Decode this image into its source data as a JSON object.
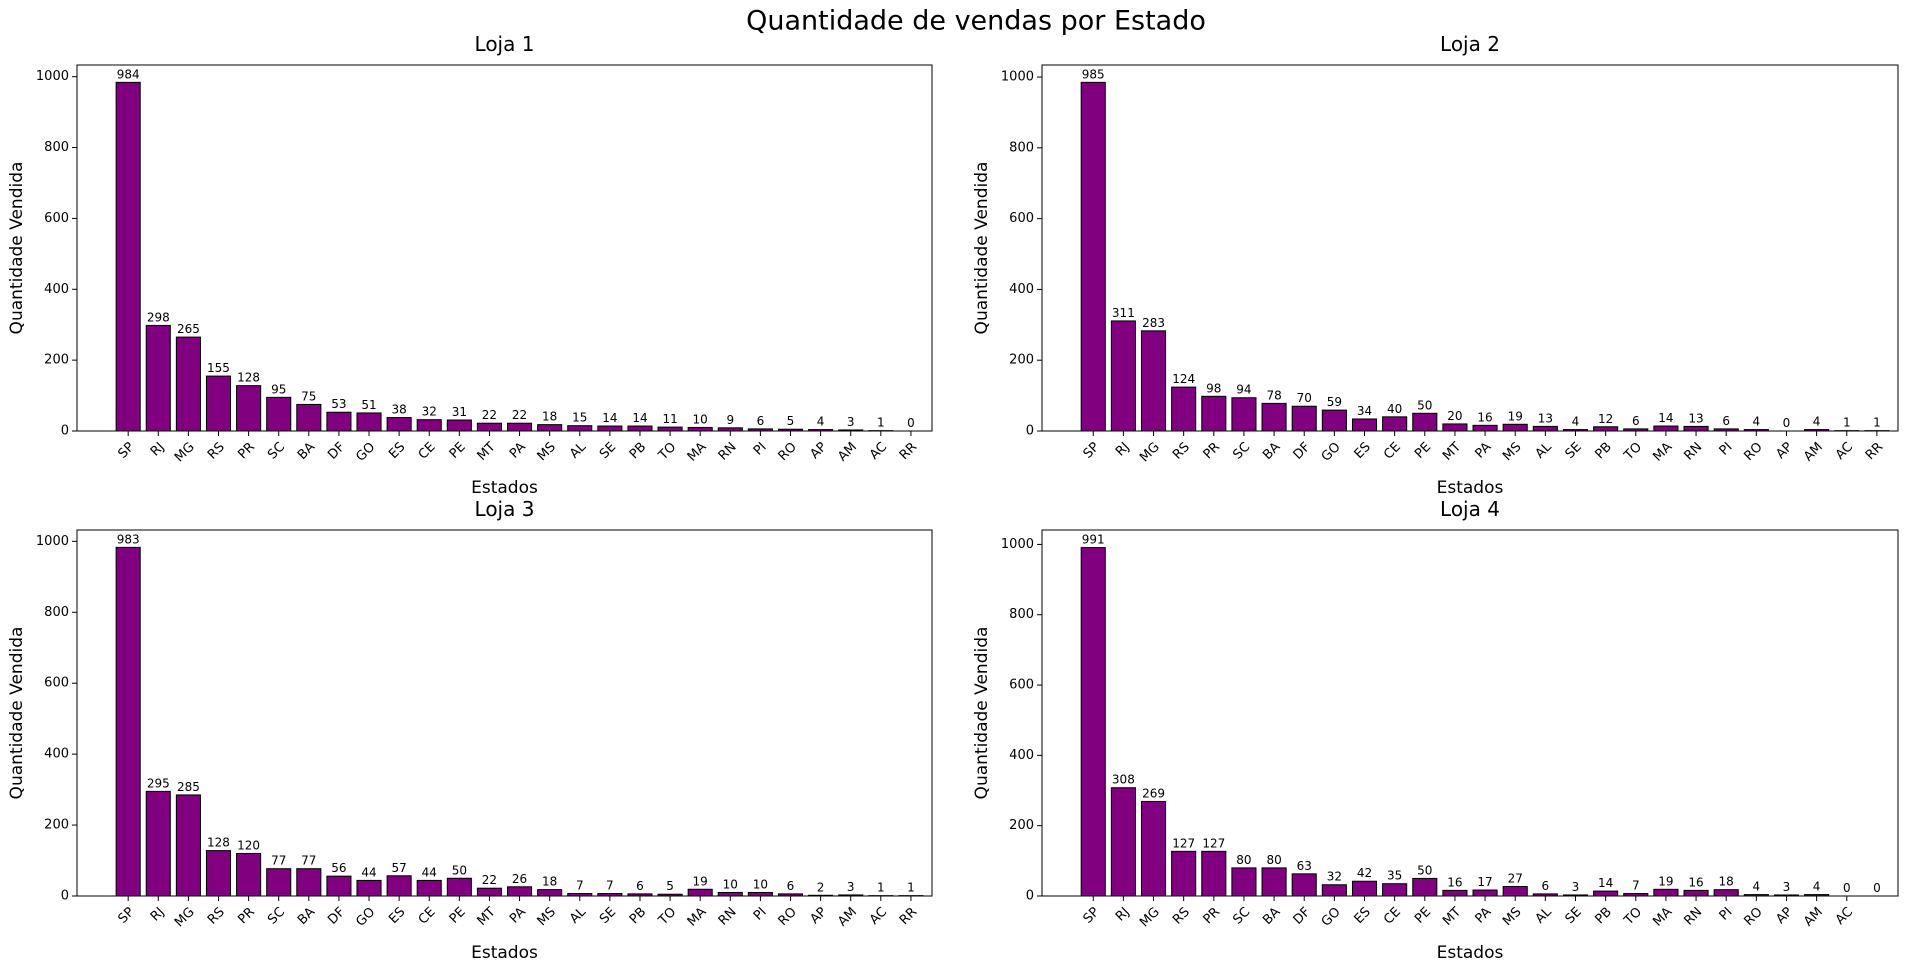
{
  "title": "Quantidade de vendas por Estado",
  "chart_data": [
    {
      "type": "bar",
      "title": "Loja 1",
      "x_label": "Estados",
      "y_label": "Quantidade Vendida",
      "color": "#800080",
      "categories": [
        "SP",
        "RJ",
        "MG",
        "RS",
        "PR",
        "SC",
        "BA",
        "DF",
        "GO",
        "ES",
        "CE",
        "PE",
        "MT",
        "PA",
        "MS",
        "AL",
        "SE",
        "PB",
        "TO",
        "MA",
        "RN",
        "PI",
        "RO",
        "AP",
        "AM",
        "AC",
        "RR"
      ],
      "values": [
        984,
        298,
        265,
        155,
        128,
        95,
        75,
        53,
        51,
        38,
        32,
        31,
        22,
        22,
        18,
        15,
        14,
        14,
        11,
        10,
        9,
        6,
        5,
        4,
        3,
        1,
        0
      ],
      "ylim": [
        0,
        1033
      ],
      "yticks": [
        0,
        200,
        400,
        600,
        800,
        1000
      ]
    },
    {
      "type": "bar",
      "title": "Loja 2",
      "x_label": "Estados",
      "y_label": "Quantidade Vendida",
      "color": "#800080",
      "categories": [
        "SP",
        "RJ",
        "MG",
        "RS",
        "PR",
        "SC",
        "BA",
        "DF",
        "GO",
        "ES",
        "CE",
        "PE",
        "MT",
        "PA",
        "MS",
        "AL",
        "SE",
        "PB",
        "TO",
        "MA",
        "RN",
        "PI",
        "RO",
        "AP",
        "AM",
        "AC",
        "RR"
      ],
      "values": [
        985,
        311,
        283,
        124,
        98,
        94,
        78,
        70,
        59,
        34,
        40,
        50,
        20,
        16,
        19,
        13,
        4,
        12,
        6,
        14,
        13,
        6,
        4,
        0,
        4,
        1,
        1
      ],
      "ylim": [
        0,
        1034
      ],
      "yticks": [
        0,
        200,
        400,
        600,
        800,
        1000
      ]
    },
    {
      "type": "bar",
      "title": "Loja 3",
      "x_label": "Estados",
      "y_label": "Quantidade Vendida",
      "color": "#800080",
      "categories": [
        "SP",
        "RJ",
        "MG",
        "RS",
        "PR",
        "SC",
        "BA",
        "DF",
        "GO",
        "ES",
        "CE",
        "PE",
        "MT",
        "PA",
        "MS",
        "AL",
        "SE",
        "PB",
        "TO",
        "MA",
        "RN",
        "PI",
        "RO",
        "AP",
        "AM",
        "AC",
        "RR"
      ],
      "values": [
        983,
        295,
        285,
        128,
        120,
        77,
        77,
        56,
        44,
        57,
        44,
        50,
        22,
        26,
        18,
        7,
        7,
        6,
        5,
        19,
        10,
        10,
        6,
        2,
        3,
        1,
        1
      ],
      "ylim": [
        0,
        1032
      ],
      "yticks": [
        0,
        200,
        400,
        600,
        800,
        1000
      ]
    },
    {
      "type": "bar",
      "title": "Loja 4",
      "x_label": "Estados",
      "y_label": "Quantidade Vendida",
      "color": "#800080",
      "categories": [
        "SP",
        "RJ",
        "MG",
        "RS",
        "PR",
        "SC",
        "BA",
        "DF",
        "GO",
        "ES",
        "CE",
        "PE",
        "MT",
        "PA",
        "MS",
        "AL",
        "SE",
        "PB",
        "TO",
        "MA",
        "RN",
        "PI",
        "RO",
        "AP",
        "AM",
        "AC",
        null
      ],
      "values": [
        991,
        308,
        269,
        127,
        127,
        80,
        80,
        63,
        32,
        42,
        35,
        50,
        16,
        17,
        27,
        6,
        3,
        14,
        7,
        19,
        16,
        18,
        4,
        3,
        4,
        0,
        0
      ],
      "ylim": [
        0,
        1041
      ],
      "yticks": [
        0,
        200,
        400,
        600,
        800,
        1000
      ]
    }
  ]
}
